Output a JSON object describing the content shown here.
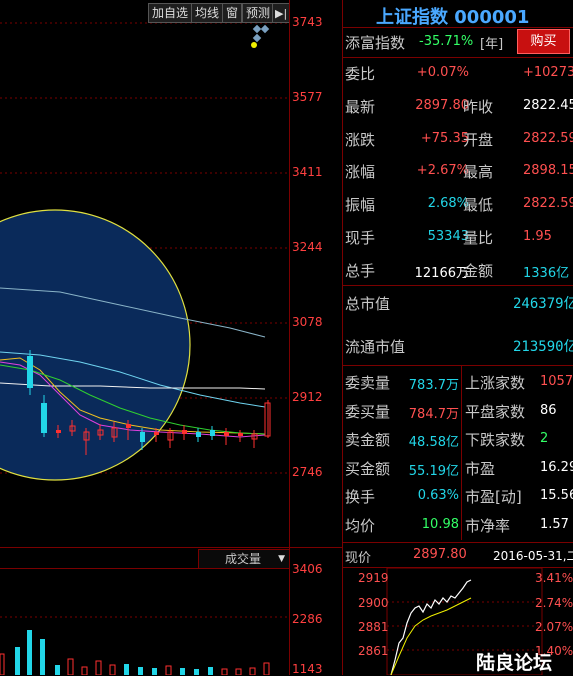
{
  "toolbar": {
    "add_favorite": "加自选",
    "ma_line": "均线",
    "window": "窗",
    "forecast": "预测"
  },
  "title": "上证指数 000001",
  "quote": {
    "label_tianfu": "添富指数",
    "tianfu_value": "-35.71%",
    "tianfu_period": "[年]",
    "buy_button": "购买",
    "rows": [
      {
        "l1": "委比",
        "v1": "+0.07%",
        "l2": "",
        "v2": "+10273",
        "c1": "red",
        "c2": "red"
      },
      {
        "l1": "最新",
        "v1": "2897.80",
        "l2": "昨收",
        "v2": "2822.45",
        "c1": "red",
        "c2": "wht"
      },
      {
        "l1": "涨跌",
        "v1": "+75.35",
        "l2": "开盘",
        "v2": "2822.59",
        "c1": "red",
        "c2": "red"
      },
      {
        "l1": "涨幅",
        "v1": "+2.67%",
        "l2": "最高",
        "v2": "2898.15",
        "c1": "red",
        "c2": "red"
      },
      {
        "l1": "振幅",
        "v1": "2.68%",
        "l2": "最低",
        "v2": "2822.59",
        "c1": "cyan",
        "c2": "red"
      },
      {
        "l1": "现手",
        "v1": "53343",
        "l2": "量比",
        "v2": "1.95",
        "c1": "cyan",
        "c2": "red"
      },
      {
        "l1": "总手",
        "v1": "12166万",
        "l2": "金额",
        "v2": "1336亿",
        "c1": "wht",
        "c2": "cyan"
      }
    ],
    "total_market_cap_label": "总市值",
    "total_market_cap": "246379亿",
    "float_market_cap_label": "流通市值",
    "float_market_cap": "213590亿",
    "rows2": [
      {
        "l1": "委卖量",
        "v1": "783.7万",
        "l2": "上涨家数",
        "v2": "1057",
        "c1": "cyan",
        "c2": "red"
      },
      {
        "l1": "委买量",
        "v1": "784.7万",
        "l2": "平盘家数",
        "v2": "86",
        "c1": "red",
        "c2": "wht"
      },
      {
        "l1": "卖金额",
        "v1": "48.58亿",
        "l2": "下跌家数",
        "v2": "2",
        "c1": "cyan",
        "c2": "grn"
      },
      {
        "l1": "买金额",
        "v1": "55.19亿",
        "l2": "市盈",
        "v2": "16.29",
        "c1": "cyan",
        "c2": "wht"
      },
      {
        "l1": "换手",
        "v1": "0.63%",
        "l2": "市盈[动]",
        "v2": "15.56",
        "c1": "cyan",
        "c2": "wht"
      },
      {
        "l1": "均价",
        "v1": "10.98",
        "l2": "市净率",
        "v2": "1.57",
        "c1": "grn",
        "c2": "wht"
      }
    ],
    "price_label": "现价",
    "price_value": "2897.80",
    "date": "2016-05-31,二"
  },
  "kline_axis": [
    "3743",
    "3577",
    "3411",
    "3244",
    "3078",
    "2912",
    "2746"
  ],
  "volume_axis": [
    "3406",
    "2286",
    "1143"
  ],
  "volume_dropdown": "成交量",
  "mini_chart": {
    "left_axis": [
      "2919",
      "2900",
      "2881",
      "2861"
    ],
    "right_axis": [
      "3.41%",
      "2.74%",
      "2.07%",
      "1.40%"
    ]
  },
  "watermark": "陆良论坛",
  "colors": {
    "up": "#ff3030",
    "down": "#22d6e8",
    "grid": "#7a0000",
    "circle": "#0a2a5a"
  }
}
